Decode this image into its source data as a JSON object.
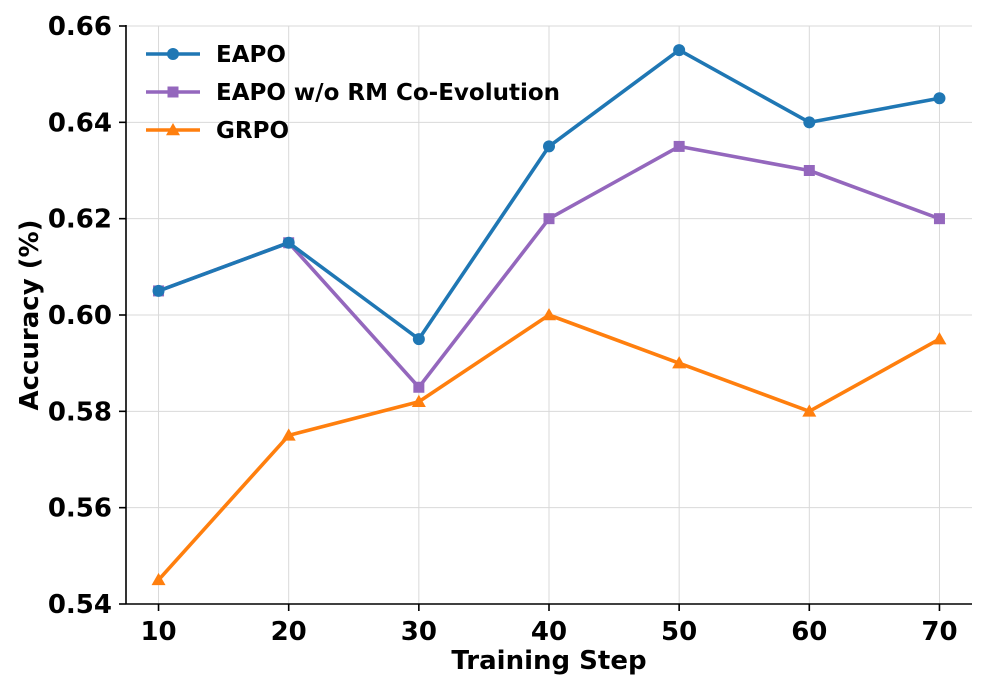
{
  "chart_data": {
    "type": "line",
    "title": "",
    "xlabel": "Training Step",
    "ylabel": "Accuracy (%)",
    "x": [
      10,
      20,
      30,
      40,
      50,
      60,
      70
    ],
    "xlim": [
      7.5,
      72.5
    ],
    "ylim": [
      0.54,
      0.66
    ],
    "xticks": [
      10,
      20,
      30,
      40,
      50,
      60,
      70
    ],
    "yticks": [
      0.54,
      0.56,
      0.58,
      0.6,
      0.62,
      0.64,
      0.66
    ],
    "ytick_labels": [
      "0.54",
      "0.56",
      "0.58",
      "0.60",
      "0.62",
      "0.64",
      "0.66"
    ],
    "grid": true,
    "legend_position": "top-left",
    "series": [
      {
        "name": "EAPO",
        "color": "#1f77b4",
        "marker": "circle",
        "values": [
          0.605,
          0.615,
          0.595,
          0.635,
          0.655,
          0.64,
          0.645
        ]
      },
      {
        "name": "EAPO w/o RM Co-Evolution",
        "color": "#9467bd",
        "marker": "square",
        "values": [
          0.605,
          0.615,
          0.585,
          0.62,
          0.635,
          0.63,
          0.62
        ]
      },
      {
        "name": "GRPO",
        "color": "#ff7f0e",
        "marker": "triangle",
        "values": [
          0.545,
          0.575,
          0.582,
          0.6,
          0.59,
          0.58,
          0.595
        ]
      }
    ]
  }
}
